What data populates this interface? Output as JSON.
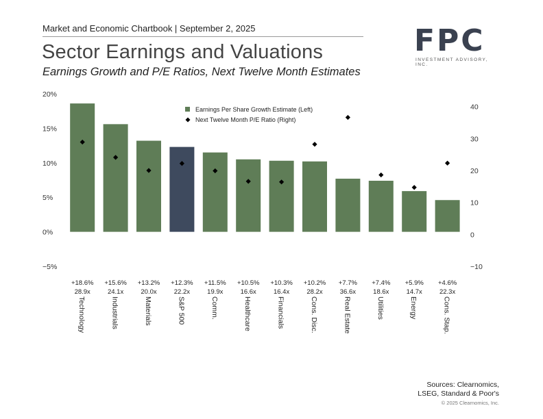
{
  "header": {
    "chartbook": "Market and Economic Chartbook | September 2, 2025",
    "title": "Sector Earnings and Valuations",
    "subtitle": "Earnings Growth and P/E Ratios, Next Twelve Month Estimates"
  },
  "logo": {
    "mark": "FPC",
    "sub": "INVESTMENT ADVISORY, INC."
  },
  "footer": {
    "sources_line1": "Sources: Clearnomics,",
    "sources_line2": "LSEG, Standard & Poor's",
    "copyright": "© 2025 Clearnomics, Inc."
  },
  "colors": {
    "bar": "#5f7d57",
    "highlight": "#3e4a5e",
    "marker": "#000000"
  },
  "chart_data": {
    "type": "bar",
    "categories": [
      "Technology",
      "Industrials",
      "Materials",
      "S&P 500",
      "Comm.",
      "Healthcare",
      "Financials",
      "Cons. Disc.",
      "Real Estate",
      "Utilities",
      "Energy",
      "Cons. Stap."
    ],
    "highlight_category": "S&P 500",
    "series": [
      {
        "name": "Earnings Per Share Growth Estimate (Left)",
        "axis": "left",
        "kind": "bar",
        "values": [
          18.6,
          15.6,
          13.2,
          12.3,
          11.5,
          10.5,
          10.3,
          10.2,
          7.7,
          7.4,
          5.9,
          4.6
        ]
      },
      {
        "name": "Next Twelve Month P/E Ratio (Right)",
        "axis": "right",
        "kind": "marker",
        "values": [
          28.9,
          24.1,
          20.0,
          22.2,
          19.9,
          16.6,
          16.4,
          28.2,
          36.6,
          18.6,
          14.7,
          22.3
        ]
      }
    ],
    "growth_labels": [
      "+18.6%",
      "+15.6%",
      "+13.2%",
      "+12.3%",
      "+11.5%",
      "+10.5%",
      "+10.3%",
      "+10.2%",
      "+7.7%",
      "+7.4%",
      "+5.9%",
      "+4.6%"
    ],
    "pe_labels": [
      "28.9x",
      "24.1x",
      "20.0x",
      "22.2x",
      "19.9x",
      "16.6x",
      "16.4x",
      "28.2x",
      "36.6x",
      "18.6x",
      "14.7x",
      "22.3x"
    ],
    "left_axis": {
      "ylim": [
        -5,
        20
      ],
      "ticks": [
        20,
        15,
        10,
        5,
        0,
        -5
      ],
      "tick_labels": [
        "20%",
        "15%",
        "10%",
        "5%",
        "0%",
        "−5%"
      ]
    },
    "right_axis": {
      "ylim": [
        -10,
        44
      ],
      "ticks": [
        40,
        30,
        20,
        10,
        0,
        -10
      ],
      "tick_labels": [
        "40",
        "30",
        "20",
        "10",
        "0",
        "−10"
      ]
    },
    "legend_position": "top-center",
    "grid": false
  }
}
